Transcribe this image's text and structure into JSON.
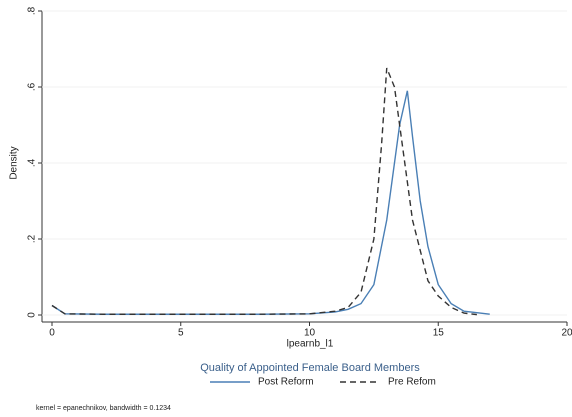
{
  "chart_data": {
    "type": "line",
    "y_label": "Density",
    "x_label": "lpearnb_l1",
    "legend_title": "Quality of Appointed Female Board Members",
    "note": "kernel = epanechnikov, bandwidth = 0.1234",
    "xlim": [
      0,
      20
    ],
    "xticks": [
      0,
      5,
      10,
      15,
      20
    ],
    "ylim": [
      0,
      0.8
    ],
    "yticks": [
      0,
      {
        "value": 0.2,
        "label": ".2"
      },
      {
        "value": 0.4,
        "label": ".4"
      },
      {
        "value": 0.6,
        "label": ".6"
      },
      {
        "value": 0.8,
        "label": ".8"
      }
    ],
    "grid": true,
    "legend": "bottom",
    "series": [
      {
        "name": "Post Reform",
        "color": "#4a7fb5",
        "linestyle": "solid",
        "x": [
          0,
          0.5,
          2,
          4,
          6,
          8,
          10,
          11,
          11.5,
          12,
          12.5,
          13,
          13.5,
          13.8,
          14,
          14.3,
          14.6,
          15,
          15.5,
          16,
          17
        ],
        "values": [
          0.025,
          0.003,
          0.002,
          0.002,
          0.002,
          0.002,
          0.003,
          0.008,
          0.015,
          0.03,
          0.08,
          0.25,
          0.5,
          0.59,
          0.47,
          0.3,
          0.18,
          0.08,
          0.03,
          0.01,
          0.002
        ]
      },
      {
        "name": "Pre Refom",
        "color": "#333333",
        "linestyle": "dashed",
        "x": [
          0,
          0.5,
          2,
          4,
          6,
          8,
          10,
          11,
          11.5,
          12,
          12.5,
          12.8,
          13,
          13.3,
          13.6,
          14,
          14.3,
          14.6,
          15,
          15.5,
          16,
          16.5
        ],
        "values": [
          0.025,
          0.003,
          0.002,
          0.002,
          0.002,
          0.002,
          0.003,
          0.01,
          0.02,
          0.06,
          0.2,
          0.45,
          0.65,
          0.6,
          0.45,
          0.25,
          0.17,
          0.09,
          0.05,
          0.02,
          0.005,
          0.001
        ]
      }
    ]
  }
}
